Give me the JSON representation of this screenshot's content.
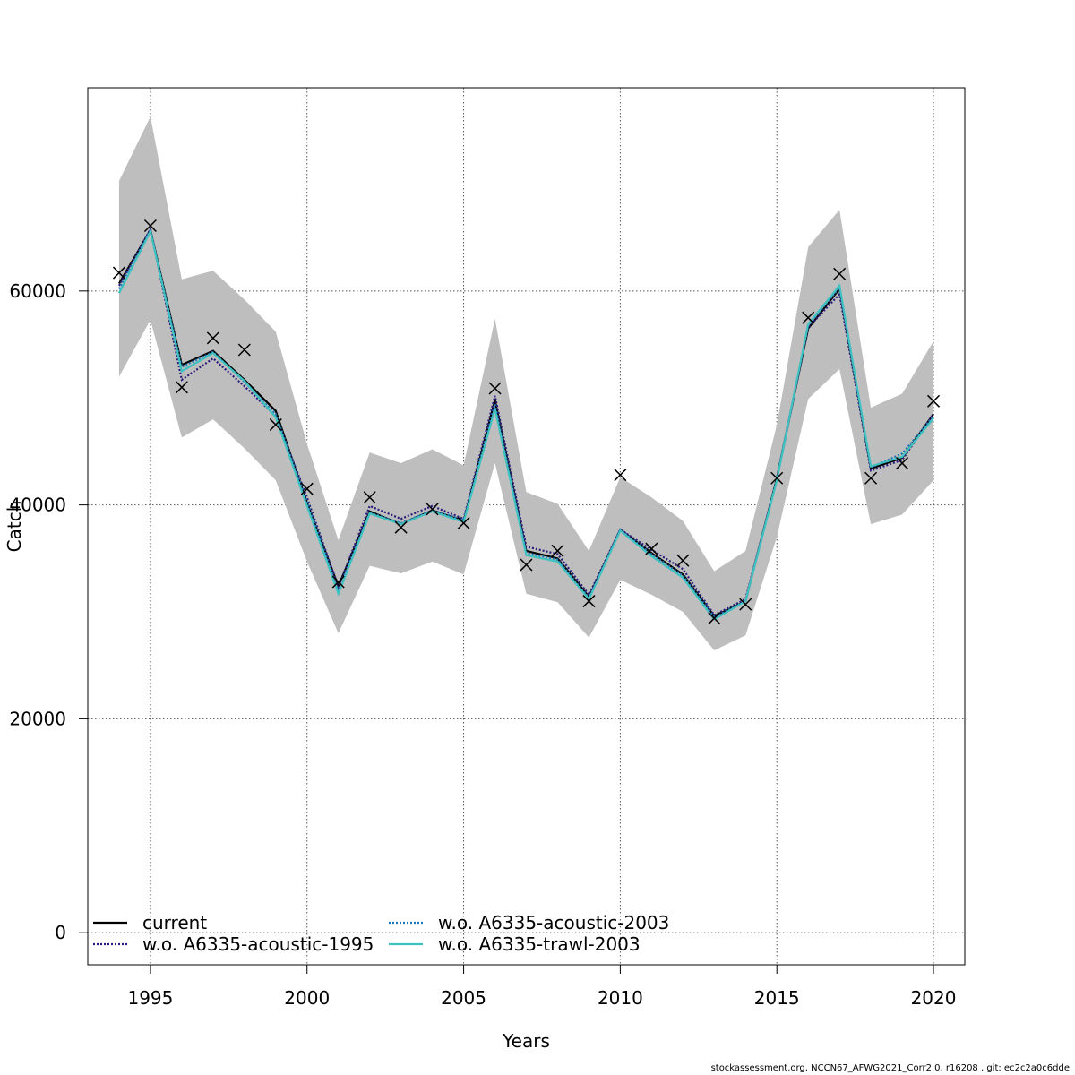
{
  "chart_data": {
    "type": "line",
    "title": "",
    "xlabel": "Years",
    "ylabel": "Catch",
    "xlim": [
      1993,
      2021
    ],
    "ylim": [
      -3000,
      79000
    ],
    "x_ticks": [
      1995,
      2000,
      2005,
      2010,
      2015,
      2020
    ],
    "y_ticks": [
      0,
      20000,
      40000,
      60000
    ],
    "grid": true,
    "legend_position": "bottom-left",
    "years": [
      1994,
      1995,
      1996,
      1997,
      1998,
      1999,
      2000,
      2001,
      2002,
      2003,
      2004,
      2005,
      2006,
      2007,
      2008,
      2009,
      2010,
      2011,
      2012,
      2013,
      2014,
      2015,
      2016,
      2017,
      2018,
      2019,
      2020
    ],
    "band": {
      "color": "#bebebe",
      "lower": [
        52000,
        57300,
        46300,
        48000,
        45300,
        42300,
        34700,
        28000,
        34300,
        33600,
        34700,
        33500,
        43900,
        31700,
        30900,
        27600,
        33000,
        31600,
        30000,
        26400,
        27800,
        37000,
        49900,
        52700,
        38200,
        39100,
        42300
      ],
      "upper": [
        70300,
        76300,
        61100,
        61900,
        59200,
        56200,
        45700,
        36700,
        44900,
        43900,
        45200,
        43700,
        57400,
        41200,
        40100,
        35700,
        42600,
        40700,
        38500,
        33800,
        35700,
        47500,
        64100,
        67600,
        49100,
        50400,
        55300
      ]
    },
    "observed": {
      "marker": "x",
      "values": [
        61700,
        66100,
        51000,
        55600,
        54500,
        47500,
        41500,
        32800,
        40700,
        37900,
        39600,
        38300,
        50900,
        34400,
        35700,
        31000,
        42800,
        35900,
        34800,
        29400,
        30700,
        42500,
        57500,
        61600,
        42500,
        43900,
        49700
      ]
    },
    "series": [
      {
        "name": "current",
        "color": "#000000",
        "dash": "solid",
        "values": [
          60700,
          65700,
          53100,
          54400,
          51700,
          48800,
          40200,
          32400,
          39400,
          38200,
          39500,
          38500,
          49800,
          35700,
          35000,
          31400,
          37700,
          35500,
          33500,
          29600,
          31000,
          42500,
          56500,
          60200,
          43400,
          44400,
          48500
        ]
      },
      {
        "name": "w.o. A6335-acoustic-1995",
        "color": "#2a1a7a",
        "dash": "dotted",
        "values": [
          60500,
          65800,
          51700,
          53700,
          51100,
          48300,
          40700,
          32300,
          39900,
          38700,
          39900,
          38700,
          50200,
          36100,
          35400,
          31600,
          37700,
          35800,
          34000,
          29700,
          31200,
          42400,
          56600,
          59700,
          43200,
          44200,
          48500
        ]
      },
      {
        "name": "w.o. A6335-acoustic-2003",
        "color": "#1f78b4",
        "dash": "dotted",
        "values": [
          60200,
          65700,
          52900,
          54300,
          51500,
          48500,
          40300,
          32000,
          39300,
          38300,
          39500,
          38600,
          49400,
          35500,
          34900,
          31300,
          37700,
          35400,
          33400,
          29500,
          31000,
          42500,
          56800,
          60300,
          43500,
          44800,
          48300
        ]
      },
      {
        "name": "w.o. A6335-trawl-2003",
        "color": "#3ec1c1",
        "dash": "solid",
        "values": [
          59800,
          65600,
          52500,
          54200,
          51600,
          48200,
          39900,
          31700,
          39200,
          38200,
          39400,
          38400,
          49000,
          35300,
          34700,
          31200,
          37600,
          35200,
          33200,
          29300,
          31000,
          42300,
          56900,
          60500,
          43600,
          44500,
          48100
        ]
      }
    ]
  },
  "footer": "stockassessment.org, NCCN67_AFWG2021_Corr2.0, r16208 , git: ec2c2a0c6dde"
}
